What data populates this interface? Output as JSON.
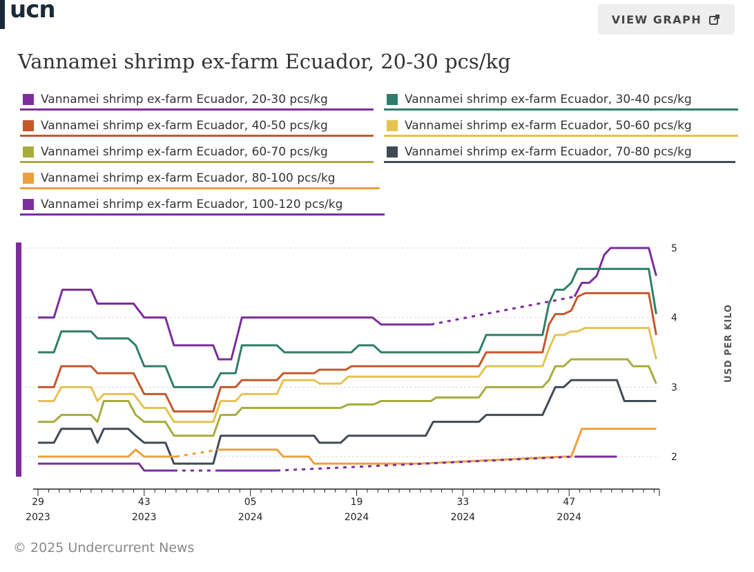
{
  "brand": {
    "logo": "ucn"
  },
  "header": {
    "view_graph_label": "VIEW GRAPH",
    "view_graph_icon": "external-link-icon"
  },
  "footer": {
    "copyright": "© 2025 Undercurrent News"
  },
  "chart_data": {
    "type": "line",
    "title": "Vannamei shrimp ex-farm Ecuador, 20-30 pcs/kg",
    "ylabel": "USD PER KILO",
    "xlabel": "",
    "ylim": [
      1.55,
      5.1
    ],
    "xlim": [
      0,
      58.5
    ],
    "yticks": [
      2,
      3,
      4,
      5
    ],
    "xticks": [
      {
        "x": 0,
        "week": "29",
        "year": "2023"
      },
      {
        "x": 10,
        "week": "43",
        "year": "2023"
      },
      {
        "x": 20,
        "week": "05",
        "year": "2024"
      },
      {
        "x": 30,
        "week": "19",
        "year": "2024"
      },
      {
        "x": 40,
        "week": "33",
        "year": "2024"
      },
      {
        "x": 50,
        "week": "47",
        "year": "2024"
      }
    ],
    "series": [
      {
        "name": "Vannamei shrimp ex-farm Ecuador, 20-30 pcs/kg",
        "color": "#7b2d9b",
        "gaps": [
          [
            37,
            50.5
          ]
        ],
        "points": [
          [
            0,
            4.0
          ],
          [
            1.5,
            4.0
          ],
          [
            2.3,
            4.4
          ],
          [
            5,
            4.4
          ],
          [
            5.6,
            4.2
          ],
          [
            9,
            4.2
          ],
          [
            10,
            4.0
          ],
          [
            12,
            4.0
          ],
          [
            12.8,
            3.6
          ],
          [
            16.5,
            3.6
          ],
          [
            17,
            3.4
          ],
          [
            18.2,
            3.4
          ],
          [
            19.2,
            4.0
          ],
          [
            31.5,
            4.0
          ],
          [
            32.3,
            3.9
          ],
          [
            37,
            3.9
          ],
          [
            50.5,
            4.3
          ],
          [
            51.2,
            4.5
          ],
          [
            51.9,
            4.5
          ],
          [
            52.6,
            4.6
          ],
          [
            53.3,
            4.9
          ],
          [
            53.9,
            5.0
          ],
          [
            57.5,
            5.0
          ],
          [
            58.2,
            4.6
          ]
        ]
      },
      {
        "name": "Vannamei shrimp ex-farm Ecuador, 30-40 pcs/kg",
        "color": "#2e7d68",
        "gaps": [],
        "points": [
          [
            0,
            3.5
          ],
          [
            1.5,
            3.5
          ],
          [
            2.2,
            3.8
          ],
          [
            5,
            3.8
          ],
          [
            5.6,
            3.7
          ],
          [
            8.5,
            3.7
          ],
          [
            9.2,
            3.6
          ],
          [
            10,
            3.3
          ],
          [
            12,
            3.3
          ],
          [
            12.8,
            3.0
          ],
          [
            16.5,
            3.0
          ],
          [
            17.2,
            3.2
          ],
          [
            18.6,
            3.2
          ],
          [
            19.2,
            3.6
          ],
          [
            22.5,
            3.6
          ],
          [
            23.2,
            3.5
          ],
          [
            29.5,
            3.5
          ],
          [
            30.2,
            3.6
          ],
          [
            31.6,
            3.6
          ],
          [
            32.3,
            3.5
          ],
          [
            41.5,
            3.5
          ],
          [
            42.2,
            3.75
          ],
          [
            47.5,
            3.75
          ],
          [
            48.1,
            4.2
          ],
          [
            48.7,
            4.4
          ],
          [
            49.5,
            4.4
          ],
          [
            50.2,
            4.5
          ],
          [
            50.8,
            4.7
          ],
          [
            57.5,
            4.7
          ],
          [
            58.2,
            4.05
          ]
        ]
      },
      {
        "name": "Vannamei shrimp ex-farm Ecuador, 40-50 pcs/kg",
        "color": "#c4582a",
        "gaps": [],
        "points": [
          [
            0,
            3.0
          ],
          [
            1.5,
            3.0
          ],
          [
            2.2,
            3.3
          ],
          [
            5,
            3.3
          ],
          [
            5.6,
            3.2
          ],
          [
            9,
            3.2
          ],
          [
            10,
            2.9
          ],
          [
            12,
            2.9
          ],
          [
            12.8,
            2.65
          ],
          [
            16.5,
            2.65
          ],
          [
            17.2,
            3.0
          ],
          [
            18.6,
            3.0
          ],
          [
            19.2,
            3.1
          ],
          [
            22.5,
            3.1
          ],
          [
            23.1,
            3.2
          ],
          [
            26,
            3.2
          ],
          [
            26.5,
            3.25
          ],
          [
            29,
            3.25
          ],
          [
            29.5,
            3.3
          ],
          [
            41.5,
            3.3
          ],
          [
            42.2,
            3.5
          ],
          [
            47.5,
            3.5
          ],
          [
            48.1,
            3.9
          ],
          [
            48.7,
            4.05
          ],
          [
            49.5,
            4.05
          ],
          [
            50.2,
            4.1
          ],
          [
            50.8,
            4.3
          ],
          [
            51.5,
            4.35
          ],
          [
            57.5,
            4.35
          ],
          [
            58.2,
            3.75
          ]
        ]
      },
      {
        "name": "Vannamei shrimp ex-farm Ecuador, 50-60 pcs/kg",
        "color": "#e6c24f",
        "gaps": [],
        "points": [
          [
            0,
            2.8
          ],
          [
            1.5,
            2.8
          ],
          [
            2.2,
            3.0
          ],
          [
            5,
            3.0
          ],
          [
            5.6,
            2.8
          ],
          [
            6.2,
            2.9
          ],
          [
            9,
            2.9
          ],
          [
            10,
            2.7
          ],
          [
            12,
            2.7
          ],
          [
            12.8,
            2.5
          ],
          [
            16.5,
            2.5
          ],
          [
            17.2,
            2.8
          ],
          [
            18.6,
            2.8
          ],
          [
            19.2,
            2.9
          ],
          [
            22.5,
            2.9
          ],
          [
            23.1,
            3.1
          ],
          [
            26,
            3.1
          ],
          [
            26.5,
            3.05
          ],
          [
            28.5,
            3.05
          ],
          [
            29.2,
            3.15
          ],
          [
            41.5,
            3.15
          ],
          [
            42.2,
            3.3
          ],
          [
            47.5,
            3.3
          ],
          [
            48.1,
            3.55
          ],
          [
            48.7,
            3.75
          ],
          [
            49.5,
            3.75
          ],
          [
            50.2,
            3.8
          ],
          [
            50.8,
            3.8
          ],
          [
            51.5,
            3.85
          ],
          [
            57.5,
            3.85
          ],
          [
            58.2,
            3.4
          ]
        ]
      },
      {
        "name": "Vannamei shrimp ex-farm Ecuador, 60-70 pcs/kg",
        "color": "#a5ac3c",
        "gaps": [],
        "points": [
          [
            0,
            2.5
          ],
          [
            1.5,
            2.5
          ],
          [
            2.2,
            2.6
          ],
          [
            5,
            2.6
          ],
          [
            5.6,
            2.5
          ],
          [
            6.2,
            2.8
          ],
          [
            8.5,
            2.8
          ],
          [
            9.2,
            2.6
          ],
          [
            10,
            2.5
          ],
          [
            12,
            2.5
          ],
          [
            12.8,
            2.3
          ],
          [
            16.5,
            2.3
          ],
          [
            17.2,
            2.6
          ],
          [
            18.6,
            2.6
          ],
          [
            19.2,
            2.7
          ],
          [
            28.5,
            2.7
          ],
          [
            29.2,
            2.75
          ],
          [
            31.6,
            2.75
          ],
          [
            32.3,
            2.8
          ],
          [
            37,
            2.8
          ],
          [
            37.5,
            2.85
          ],
          [
            41.5,
            2.85
          ],
          [
            42.2,
            3.0
          ],
          [
            47.5,
            3.0
          ],
          [
            48.1,
            3.1
          ],
          [
            48.7,
            3.3
          ],
          [
            49.5,
            3.3
          ],
          [
            50.2,
            3.4
          ],
          [
            54,
            3.4
          ],
          [
            55.5,
            3.4
          ],
          [
            56,
            3.3
          ],
          [
            57.5,
            3.3
          ],
          [
            58.2,
            3.05
          ]
        ]
      },
      {
        "name": "Vannamei shrimp ex-farm Ecuador, 70-80 pcs/kg",
        "color": "#3f4a55",
        "gaps": [],
        "points": [
          [
            0,
            2.2
          ],
          [
            1.5,
            2.2
          ],
          [
            2.2,
            2.4
          ],
          [
            5,
            2.4
          ],
          [
            5.6,
            2.2
          ],
          [
            6.2,
            2.4
          ],
          [
            8.5,
            2.4
          ],
          [
            9.2,
            2.3
          ],
          [
            10,
            2.2
          ],
          [
            12,
            2.2
          ],
          [
            12.8,
            1.9
          ],
          [
            16.5,
            1.9
          ],
          [
            17.2,
            2.3
          ],
          [
            26,
            2.3
          ],
          [
            26.5,
            2.2
          ],
          [
            28.5,
            2.2
          ],
          [
            29.2,
            2.3
          ],
          [
            36.5,
            2.3
          ],
          [
            37.2,
            2.5
          ],
          [
            41.5,
            2.5
          ],
          [
            42.2,
            2.6
          ],
          [
            47.5,
            2.6
          ],
          [
            48.1,
            2.8
          ],
          [
            48.7,
            3.0
          ],
          [
            49.5,
            3.0
          ],
          [
            50.2,
            3.1
          ],
          [
            54.5,
            3.1
          ],
          [
            55.2,
            2.8
          ],
          [
            58.2,
            2.8
          ]
        ]
      },
      {
        "name": "Vannamei shrimp ex-farm Ecuador, 80-100 pcs/kg",
        "color": "#ec9f3e",
        "gaps": [
          [
            13,
            17
          ]
        ],
        "points": [
          [
            0,
            2.0
          ],
          [
            8.5,
            2.0
          ],
          [
            9.2,
            2.1
          ],
          [
            10,
            2.0
          ],
          [
            13,
            2.0
          ],
          [
            17,
            2.1
          ],
          [
            22.5,
            2.1
          ],
          [
            23.1,
            2.0
          ],
          [
            25.5,
            2.0
          ],
          [
            26,
            1.9
          ],
          [
            36,
            1.9
          ],
          [
            49.5,
            2.0
          ],
          [
            50.2,
            2.0
          ],
          [
            51.2,
            2.4
          ],
          [
            58.2,
            2.4
          ]
        ]
      },
      {
        "name": "Vannamei shrimp ex-farm Ecuador, 100-120 pcs/kg",
        "color": "#7b2d9b",
        "gaps": [
          [
            12.8,
            16.8
          ],
          [
            22.5,
            50.5
          ]
        ],
        "points": [
          [
            0,
            1.9
          ],
          [
            9.5,
            1.9
          ],
          [
            10,
            1.8
          ],
          [
            12.8,
            1.8
          ],
          [
            16.8,
            1.8
          ],
          [
            22.5,
            1.8
          ],
          [
            50.5,
            2.0
          ],
          [
            54.5,
            2.0
          ]
        ]
      }
    ]
  }
}
